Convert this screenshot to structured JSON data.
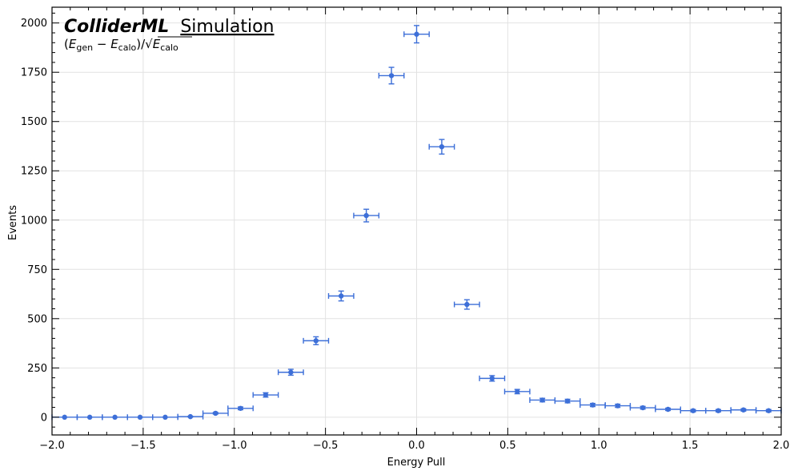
{
  "chart_data": {
    "type": "scatter",
    "title": "",
    "brand": {
      "bold": "ColliderML",
      "normal": "Simulation"
    },
    "annotation": {
      "open": "(",
      "e1": "E",
      "s1": "gen",
      "minus": " − ",
      "e2": "E",
      "s2": "calo",
      "close": ")/",
      "e3": "E",
      "s3": "calo"
    },
    "xlabel": "Energy Pull",
    "ylabel": "Events",
    "xlim": [
      -2.0,
      2.0
    ],
    "ylim": [
      -90,
      2080
    ],
    "xticks": [
      -2.0,
      -1.5,
      -1.0,
      -0.5,
      0.0,
      0.5,
      1.0,
      1.5,
      2.0
    ],
    "xtick_labels": [
      "−2.0",
      "−1.5",
      "−1.0",
      "−0.5",
      "0.0",
      "0.5",
      "1.0",
      "1.5",
      "2.0"
    ],
    "yticks": [
      0,
      250,
      500,
      750,
      1000,
      1250,
      1500,
      1750,
      2000
    ],
    "ytick_labels": [
      "0",
      "250",
      "500",
      "750",
      "1000",
      "1250",
      "1500",
      "1750",
      "2000"
    ],
    "grid": true,
    "bin_half_width": 0.069,
    "marker_color": "#3d6fd8",
    "x": [
      -1.931,
      -1.793,
      -1.655,
      -1.517,
      -1.379,
      -1.241,
      -1.103,
      -0.966,
      -0.828,
      -0.69,
      -0.552,
      -0.414,
      -0.276,
      -0.138,
      0.0,
      0.138,
      0.276,
      0.414,
      0.552,
      0.69,
      0.828,
      0.966,
      1.103,
      1.241,
      1.379,
      1.517,
      1.655,
      1.793,
      1.931
    ],
    "y": [
      0,
      0,
      0,
      0,
      0,
      3,
      20,
      45,
      113,
      228,
      388,
      615,
      1023,
      1733,
      1943,
      1372,
      572,
      197,
      130,
      87,
      82,
      62,
      58,
      48,
      40,
      33,
      33,
      37,
      33
    ],
    "yerr": [
      0,
      0,
      0,
      0,
      0,
      2,
      4,
      7,
      11,
      15,
      20,
      25,
      32,
      42,
      44,
      37,
      24,
      14,
      11,
      9,
      9,
      8,
      8,
      7,
      6,
      6,
      6,
      6,
      6
    ]
  }
}
